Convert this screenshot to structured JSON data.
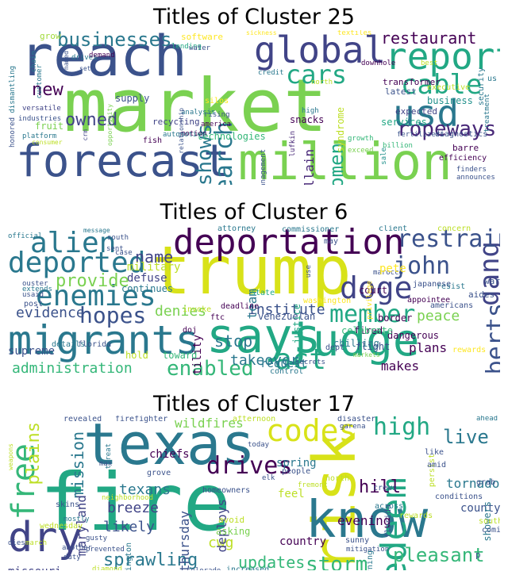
{
  "panels": [
    {
      "title": "Titles of Cluster 25",
      "words": [
        {
          "t": "market",
          "c": "#7ad151"
        },
        {
          "t": "forecast",
          "c": "#3b528b"
        },
        {
          "t": "million",
          "c": "#7ad151"
        },
        {
          "t": "reach",
          "c": "#3b528b"
        },
        {
          "t": "global",
          "c": "#414487"
        },
        {
          "t": "report",
          "c": "#22a884"
        },
        {
          "t": "usd",
          "c": "#2a788e"
        },
        {
          "t": "cable",
          "c": "#22a884"
        },
        {
          "t": "research",
          "c": "#2a788e"
        },
        {
          "t": "cars",
          "c": "#22a884"
        },
        {
          "t": "ropeways",
          "c": "#482878"
        },
        {
          "t": "shows",
          "c": "#2a788e"
        },
        {
          "t": "women",
          "c": "#22a884"
        },
        {
          "t": "owned",
          "c": "#414487"
        },
        {
          "t": "new",
          "c": "#440154"
        },
        {
          "t": "businesses",
          "c": "#2a788e"
        },
        {
          "t": "restaurant",
          "c": "#440154"
        },
        {
          "t": "guillain",
          "c": "#482878"
        },
        {
          "t": "business",
          "c": "#21918c"
        },
        {
          "t": "recycling",
          "c": "#414487"
        },
        {
          "t": "technologies",
          "c": "#35b779"
        },
        {
          "t": "snacks",
          "c": "#440154"
        },
        {
          "t": "expected",
          "c": "#414487"
        },
        {
          "t": "services",
          "c": "#22a884"
        },
        {
          "t": "supply",
          "c": "#3b528b"
        },
        {
          "t": "transformer",
          "c": "#440154"
        },
        {
          "t": "latest",
          "c": "#3b528b"
        },
        {
          "t": "fruit",
          "c": "#7ad151"
        },
        {
          "t": "grow",
          "c": "#a0da39"
        },
        {
          "t": "software",
          "c": "#fde725"
        },
        {
          "t": "lufkin",
          "c": "#482878"
        },
        {
          "t": "barre",
          "c": "#440154"
        },
        {
          "t": "syndrome",
          "c": "#bddf26"
        },
        {
          "t": "executive",
          "c": "#bddf26"
        },
        {
          "t": "diagnostics",
          "c": "#3b528b"
        },
        {
          "t": "fish",
          "c": "#440154"
        },
        {
          "t": "sickness",
          "c": "#fde725"
        },
        {
          "t": "efficiency",
          "c": "#440154"
        },
        {
          "t": "treatment",
          "c": "#2a788e"
        },
        {
          "t": "finders",
          "c": "#3b528b"
        },
        {
          "t": "announces",
          "c": "#3b528b"
        },
        {
          "t": "honored",
          "c": "#3b528b"
        },
        {
          "t": "versatile",
          "c": "#414487"
        },
        {
          "t": "industries",
          "c": "#3b528b"
        },
        {
          "t": "platform",
          "c": "#2a788e"
        },
        {
          "t": "dismantling",
          "c": "#2a788e"
        },
        {
          "t": "chain",
          "c": "#2a788e"
        },
        {
          "t": "customer",
          "c": "#2a788e"
        },
        {
          "t": "drives",
          "c": "#2a788e"
        },
        {
          "t": "lending",
          "c": "#22a884"
        },
        {
          "t": "water",
          "c": "#3b528b"
        },
        {
          "t": "credit",
          "c": "#2a788e"
        },
        {
          "t": "silos",
          "c": "#fde725"
        },
        {
          "t": "rising",
          "c": "#3b528b"
        },
        {
          "t": "america",
          "c": "#440154"
        },
        {
          "t": "motion",
          "c": "#440154"
        },
        {
          "t": "analysis",
          "c": "#2a788e"
        },
        {
          "t": "automotive",
          "c": "#2a788e"
        },
        {
          "t": "growth",
          "c": "#35b779"
        },
        {
          "t": "exceed",
          "c": "#7ad151"
        },
        {
          "t": "billion",
          "c": "#35b779"
        },
        {
          "t": "sale",
          "c": "#21918c"
        },
        {
          "t": "textiles",
          "c": "#fde725"
        },
        {
          "t": "downhole",
          "c": "#440154"
        },
        {
          "t": "best",
          "c": "#bddf26"
        },
        {
          "t": "fertilizers",
          "c": "#3b528b"
        },
        {
          "t": "security",
          "c": "#2a788e"
        },
        {
          "t": "us",
          "c": "#2a788e"
        },
        {
          "t": "high",
          "c": "#2a788e"
        },
        {
          "t": "management",
          "c": "#3b528b"
        },
        {
          "t": "consumer",
          "c": "#bddf26"
        },
        {
          "t": "crm",
          "c": "#414487"
        },
        {
          "t": "opportunity",
          "c": "#7ad151"
        },
        {
          "t": "relationship",
          "c": "#3b528b"
        },
        {
          "t": "demand",
          "c": "#440154"
        },
        {
          "t": "north",
          "c": "#bddf26"
        },
        {
          "t": "named",
          "c": "#3b528b"
        },
        {
          "t": "set",
          "c": "#3b528b"
        }
      ]
    },
    {
      "title": "Titles of Cluster 6",
      "words": [
        {
          "t": "trump",
          "c": "#d8e219"
        },
        {
          "t": "says",
          "c": "#22a884"
        },
        {
          "t": "judge",
          "c": "#22a884"
        },
        {
          "t": "migrants",
          "c": "#2a788e"
        },
        {
          "t": "deportation",
          "c": "#440154"
        },
        {
          "t": "alien",
          "c": "#2a788e"
        },
        {
          "t": "deported",
          "c": "#2a788e"
        },
        {
          "t": "enemies",
          "c": "#2a788e"
        },
        {
          "t": "doge",
          "c": "#414487"
        },
        {
          "t": "gang",
          "c": "#414487"
        },
        {
          "t": "act",
          "c": "#22a884"
        },
        {
          "t": "john",
          "c": "#3b528b"
        },
        {
          "t": "member",
          "c": "#22a884"
        },
        {
          "t": "roberts",
          "c": "#3b528b"
        },
        {
          "t": "restrain",
          "c": "#3b528b"
        },
        {
          "t": "enabled",
          "c": "#35b779"
        },
        {
          "t": "hopes",
          "c": "#3b528b"
        },
        {
          "t": "administration",
          "c": "#35b779"
        },
        {
          "t": "provide",
          "c": "#7ad151"
        },
        {
          "t": "evidence",
          "c": "#3b528b"
        },
        {
          "t": "denies",
          "c": "#7ad151"
        },
        {
          "t": "name",
          "c": "#414487"
        },
        {
          "t": "institute",
          "c": "#3b528b"
        },
        {
          "t": "stop",
          "c": "#2a788e"
        },
        {
          "t": "supreme",
          "c": "#3b528b"
        },
        {
          "t": "takeover",
          "c": "#2a788e"
        },
        {
          "t": "request",
          "c": "#2a788e"
        },
        {
          "t": "makes",
          "c": "#440154"
        },
        {
          "t": "plans",
          "c": "#440154"
        },
        {
          "t": "peace",
          "c": "#7ad151"
        },
        {
          "t": "team",
          "c": "#2a788e"
        },
        {
          "t": "hostility",
          "c": "#440154"
        },
        {
          "t": "military",
          "c": "#bddf26"
        },
        {
          "t": "defuse",
          "c": "#414487"
        },
        {
          "t": "continues",
          "c": "#2a788e"
        },
        {
          "t": "toward",
          "c": "#35b779"
        },
        {
          "t": "hold",
          "c": "#bddf26"
        },
        {
          "t": "court",
          "c": "#440154"
        },
        {
          "t": "border",
          "c": "#440154"
        },
        {
          "t": "fired",
          "c": "#440154"
        },
        {
          "t": "dangerous",
          "c": "#440154"
        },
        {
          "t": "chilling",
          "c": "#2a788e"
        },
        {
          "t": "celebrate",
          "c": "#35b779"
        },
        {
          "t": "flight",
          "c": "#3b528b"
        },
        {
          "t": "dept",
          "c": "#3b528b"
        },
        {
          "t": "rewards",
          "c": "#fde725"
        },
        {
          "t": "warn",
          "c": "#3b528b"
        },
        {
          "t": "aides",
          "c": "#3b528b"
        },
        {
          "t": "resist",
          "c": "#2a788e"
        },
        {
          "t": "japanese",
          "c": "#3b528b"
        },
        {
          "t": "americans",
          "c": "#3b528b"
        },
        {
          "t": "attorney",
          "c": "#2a788e"
        },
        {
          "t": "commissioner",
          "c": "#2a788e"
        },
        {
          "t": "client",
          "c": "#2a788e"
        },
        {
          "t": "concern",
          "c": "#bddf26"
        },
        {
          "t": "state",
          "c": "#22a884"
        },
        {
          "t": "washington",
          "c": "#fde725"
        },
        {
          "t": "deadline",
          "c": "#440154"
        },
        {
          "t": "justice",
          "c": "#22a884"
        },
        {
          "t": "venezuelan",
          "c": "#3b528b"
        },
        {
          "t": "ftc",
          "c": "#440154"
        },
        {
          "t": "invoke",
          "c": "#bddf26"
        },
        {
          "t": "doj",
          "c": "#440154"
        },
        {
          "t": "details",
          "c": "#2a788e"
        },
        {
          "t": "florida",
          "c": "#3b528b"
        },
        {
          "t": "extends",
          "c": "#2a788e"
        },
        {
          "t": "post",
          "c": "#3b528b"
        },
        {
          "t": "usaid",
          "c": "#3b528b"
        },
        {
          "t": "ouster",
          "c": "#3b528b"
        },
        {
          "t": "case",
          "c": "#3b528b"
        },
        {
          "t": "south",
          "c": "#3b528b"
        },
        {
          "t": "sent",
          "c": "#3b528b"
        },
        {
          "t": "message",
          "c": "#2a788e"
        },
        {
          "t": "official",
          "c": "#2a788e"
        },
        {
          "t": "control",
          "c": "#2a788e"
        },
        {
          "t": "secrets",
          "c": "#3b528b"
        },
        {
          "t": "markets",
          "c": "#7ad151"
        },
        {
          "t": "marocco",
          "c": "#3b528b"
        },
        {
          "t": "appointee",
          "c": "#440154"
        },
        {
          "t": "may",
          "c": "#3b528b"
        },
        {
          "t": "use",
          "c": "#3b528b"
        },
        {
          "t": "privilege",
          "c": "#fde725"
        },
        {
          "t": "pete",
          "c": "#fde725"
        },
        {
          "t": "u",
          "c": "#3b528b"
        }
      ]
    },
    {
      "title": "Titles of Cluster 17",
      "words": [
        {
          "t": "fire",
          "c": "#22a884"
        },
        {
          "t": "texas",
          "c": "#2a788e"
        },
        {
          "t": "risk",
          "c": "#d8e219"
        },
        {
          "t": "know",
          "c": "#2a788e"
        },
        {
          "t": "dry",
          "c": "#414487"
        },
        {
          "t": "free",
          "c": "#35b779"
        },
        {
          "t": "codes",
          "c": "#d8e219"
        },
        {
          "t": "redeem",
          "c": "#22a884"
        },
        {
          "t": "high",
          "c": "#22a884"
        },
        {
          "t": "live",
          "c": "#2a788e"
        },
        {
          "t": "plains",
          "c": "#bddf26"
        },
        {
          "t": "mission",
          "c": "#2a788e"
        },
        {
          "t": "drives",
          "c": "#440154"
        },
        {
          "t": "storm",
          "c": "#35b779"
        },
        {
          "t": "updates",
          "c": "#35b779"
        },
        {
          "t": "sprawling",
          "c": "#2a788e"
        },
        {
          "t": "pleasant",
          "c": "#35b779"
        },
        {
          "t": "hill",
          "c": "#440154"
        },
        {
          "t": "evening",
          "c": "#440154"
        },
        {
          "t": "texans",
          "c": "#2a788e"
        },
        {
          "t": "likely",
          "c": "#3b528b"
        },
        {
          "t": "breeze",
          "c": "#414487"
        },
        {
          "t": "cwg",
          "c": "#bddf26"
        },
        {
          "t": "deploys",
          "c": "#414487"
        },
        {
          "t": "thursday",
          "c": "#3b528b"
        },
        {
          "t": "wildfires",
          "c": "#7ad151"
        },
        {
          "t": "spring",
          "c": "#2a788e"
        },
        {
          "t": "feel",
          "c": "#bddf26"
        },
        {
          "t": "country",
          "c": "#440154"
        },
        {
          "t": "tornado",
          "c": "#2a788e"
        },
        {
          "t": "county",
          "c": "#3b528b"
        },
        {
          "t": "showers",
          "c": "#2a788e"
        },
        {
          "t": "maryland",
          "c": "#414487"
        },
        {
          "t": "missouri",
          "c": "#414487"
        },
        {
          "t": "chiefs",
          "c": "#440154"
        },
        {
          "t": "firefighter",
          "c": "#3b528b"
        },
        {
          "t": "afternoon",
          "c": "#bddf26"
        },
        {
          "t": "today",
          "c": "#3b528b"
        },
        {
          "t": "disaster",
          "c": "#3b528b"
        },
        {
          "t": "garena",
          "c": "#3b528b"
        },
        {
          "t": "ahead",
          "c": "#2a788e"
        },
        {
          "t": "weapons",
          "c": "#bddf26"
        },
        {
          "t": "revealed",
          "c": "#3b528b"
        },
        {
          "t": "threat",
          "c": "#2a788e"
        },
        {
          "t": "max",
          "c": "#3b528b"
        },
        {
          "t": "grove",
          "c": "#3b528b"
        },
        {
          "t": "elk",
          "c": "#3b528b"
        },
        {
          "t": "people",
          "c": "#3b528b"
        },
        {
          "t": "fremont",
          "c": "#bddf26"
        },
        {
          "t": "crews",
          "c": "#3b528b"
        },
        {
          "t": "like",
          "c": "#3b528b"
        },
        {
          "t": "persist",
          "c": "#bddf26"
        },
        {
          "t": "amid",
          "c": "#3b528b"
        },
        {
          "t": "grab",
          "c": "#3b528b"
        },
        {
          "t": "conditions",
          "c": "#3b528b"
        },
        {
          "t": "across",
          "c": "#2a788e"
        },
        {
          "t": "rewards",
          "c": "#bddf26"
        },
        {
          "t": "sunny",
          "c": "#3b528b"
        },
        {
          "t": "mitigation",
          "c": "#3b528b"
        },
        {
          "t": "burning",
          "c": "#2a788e"
        },
        {
          "t": "florida",
          "c": "#3b528b"
        },
        {
          "t": "south",
          "c": "#bddf26"
        },
        {
          "t": "coming",
          "c": "#3b528b"
        },
        {
          "t": "north",
          "c": "#bddf26"
        },
        {
          "t": "homeowners",
          "c": "#3b528b"
        },
        {
          "t": "asking",
          "c": "#7ad151"
        },
        {
          "t": "avoid",
          "c": "#bddf26"
        },
        {
          "t": "increased",
          "c": "#2a788e"
        },
        {
          "t": "colorado",
          "c": "#3b528b"
        },
        {
          "t": "diamond",
          "c": "#bddf26"
        },
        {
          "t": "gusty",
          "c": "#3b528b"
        },
        {
          "t": "prevented",
          "c": "#3b528b"
        },
        {
          "t": "duty",
          "c": "#3b528b"
        },
        {
          "t": "another",
          "c": "#3b528b"
        },
        {
          "t": "mostly",
          "c": "#2a788e"
        },
        {
          "t": "dies",
          "c": "#3b528b"
        },
        {
          "t": "march",
          "c": "#bddf26"
        },
        {
          "t": "wednesday",
          "c": "#bddf26"
        },
        {
          "t": "neighborhood",
          "c": "#bddf26"
        },
        {
          "t": "skins",
          "c": "#3b528b"
        },
        {
          "t": "washington",
          "c": "#2a788e"
        },
        {
          "t": "p",
          "c": "#3b528b"
        }
      ]
    }
  ]
}
